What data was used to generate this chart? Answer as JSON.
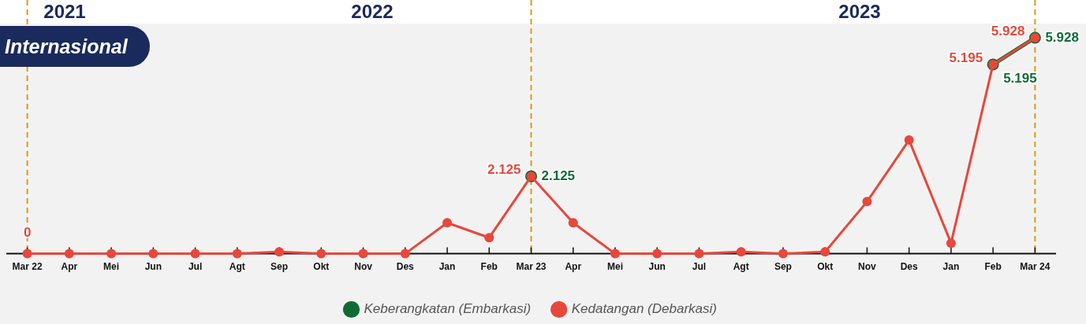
{
  "chart_data": {
    "type": "line",
    "title": "Internasional",
    "annotations": [
      "2021",
      "2022",
      "2023"
    ],
    "categories": [
      "Mar 22",
      "Apr",
      "Mei",
      "Jun",
      "Jul",
      "Agt",
      "Sep",
      "Okt",
      "Nov",
      "Des",
      "Jan",
      "Feb",
      "Mar 23",
      "Apr",
      "Mei",
      "Jun",
      "Jul",
      "Agt",
      "Sep",
      "Okt",
      "Nov",
      "Des",
      "Jan",
      "Feb",
      "Mar 24"
    ],
    "series": [
      {
        "name": "Keberangkatan (Embarkasi)",
        "color": "#0e6b35",
        "values": [
          null,
          null,
          null,
          null,
          null,
          null,
          null,
          null,
          null,
          null,
          null,
          null,
          2.125,
          null,
          null,
          null,
          null,
          null,
          null,
          null,
          null,
          null,
          null,
          5.195,
          5.928
        ],
        "value_labels": [
          null,
          null,
          null,
          null,
          null,
          null,
          null,
          null,
          null,
          null,
          null,
          null,
          "2.125",
          null,
          null,
          null,
          null,
          null,
          null,
          null,
          null,
          null,
          null,
          "5.195",
          "5.928"
        ]
      },
      {
        "name": "Kedatangan (Debarkasi)",
        "color": "#e8473b",
        "values": [
          0,
          0,
          0,
          0,
          0,
          0,
          0.05,
          0,
          0,
          0,
          0.85,
          0.44,
          2.125,
          0.85,
          0,
          0,
          0,
          0.05,
          0,
          0.05,
          1.43,
          3.12,
          0.29,
          5.195,
          5.928
        ],
        "value_labels": [
          "0",
          null,
          null,
          null,
          null,
          null,
          null,
          null,
          null,
          null,
          null,
          null,
          "2.125",
          null,
          null,
          null,
          null,
          null,
          null,
          null,
          null,
          null,
          null,
          "5.195",
          "5.928"
        ]
      }
    ],
    "ref_lines": [
      {
        "axis": "x",
        "value": "Mar 22",
        "color": "#d09f1c",
        "line_style": "dashed"
      },
      {
        "axis": "x",
        "value": "Mar 23",
        "color": "#d09f1c",
        "line_style": "dashed"
      },
      {
        "axis": "x",
        "value": "Mar 24",
        "color": "#d09f1c",
        "line_style": "dashed"
      }
    ],
    "legend": "bottom",
    "marker": "circle",
    "line_style": "solid",
    "grid": false,
    "tick_labels": "x"
  }
}
